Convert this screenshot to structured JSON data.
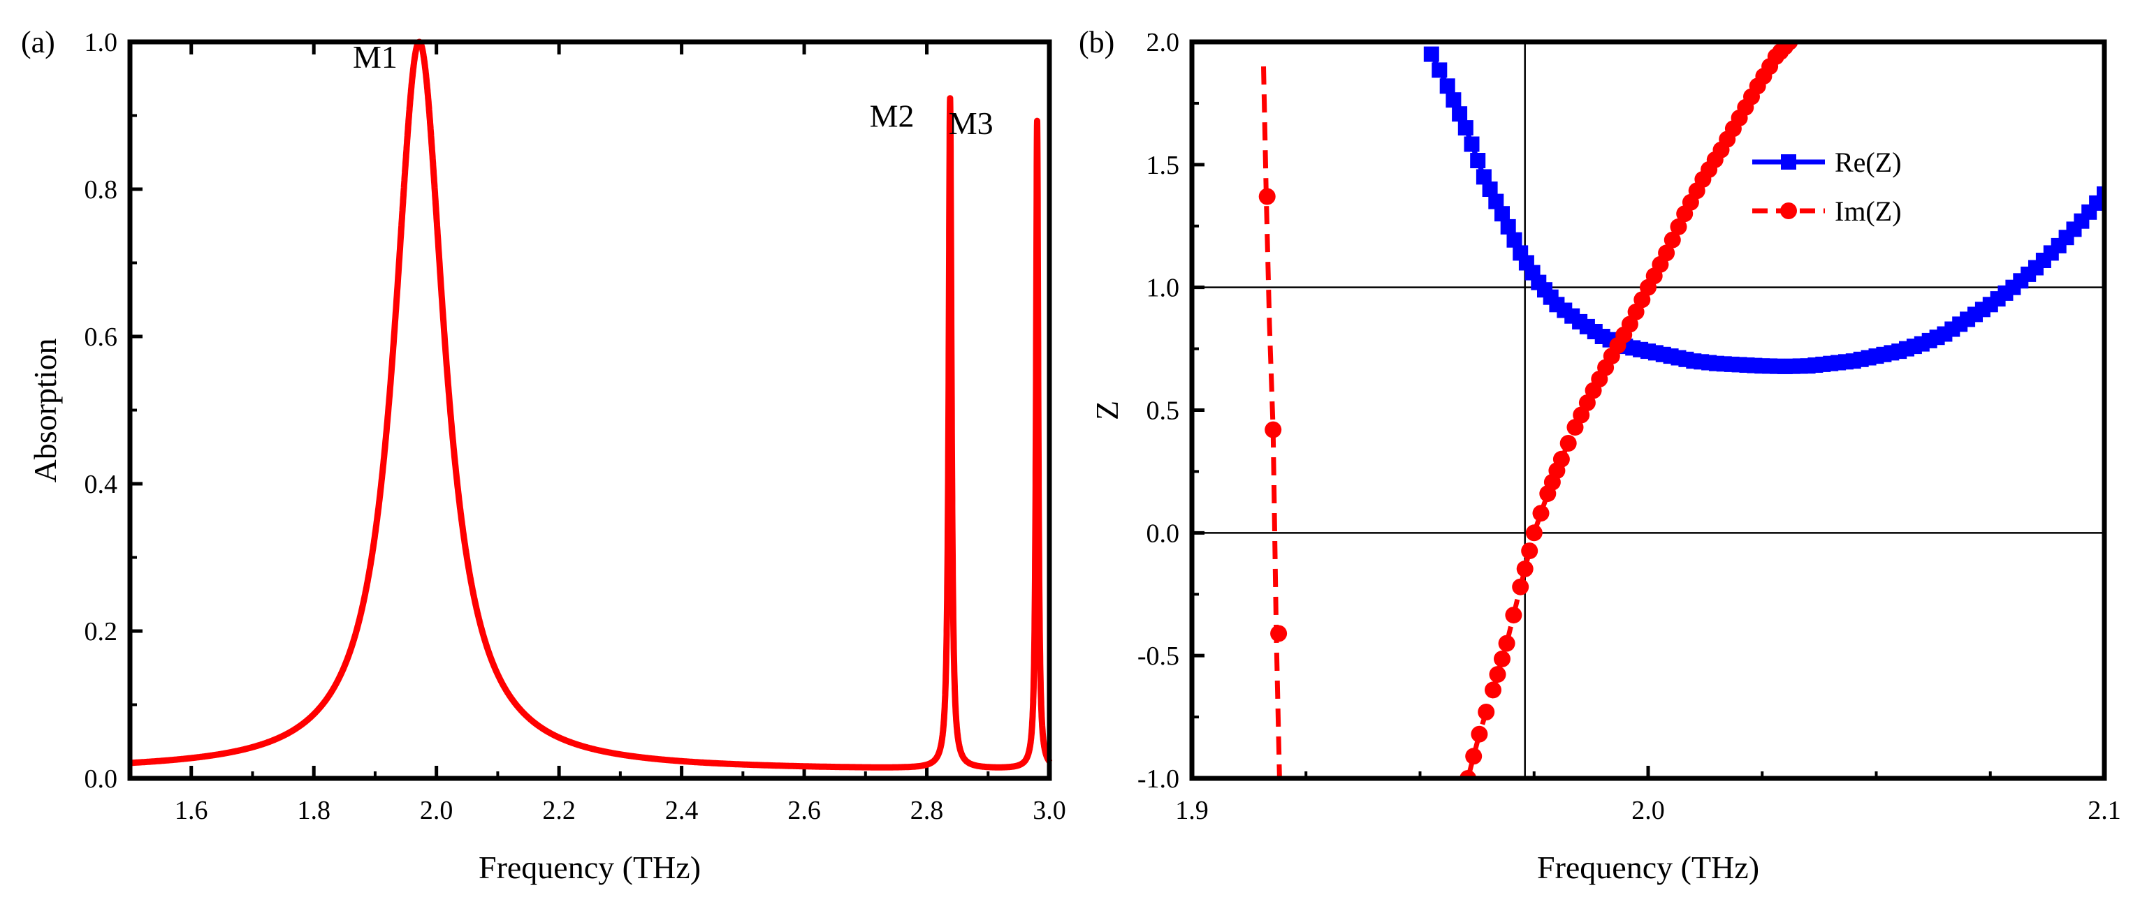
{
  "chart_data": [
    {
      "type": "line",
      "panel_label": "(a)",
      "xlabel": "Frequency (THz)",
      "ylabel": "Absorption",
      "xlim": [
        1.5,
        3.0
      ],
      "ylim": [
        0.0,
        1.0
      ],
      "x_ticks": [
        1.6,
        1.8,
        2.0,
        2.2,
        2.4,
        2.6,
        2.8,
        3.0
      ],
      "x_tick_labels": [
        "1.6",
        "1.8",
        "2.0",
        "2.2",
        "2.4",
        "2.6",
        "2.8",
        "3.0"
      ],
      "y_ticks": [
        0.0,
        0.2,
        0.4,
        0.6,
        0.8,
        1.0
      ],
      "y_tick_labels": [
        "0.0",
        "0.2",
        "0.4",
        "0.6",
        "0.8",
        "1.0"
      ],
      "series": [
        {
          "name": "Absorption",
          "color": "#ff0000",
          "baseline": 0.01,
          "peaks": [
            {
              "label": "M1",
              "center": 1.972,
              "amplitude": 0.99,
              "half_width": 0.05
            },
            {
              "label": "M2",
              "center": 2.838,
              "amplitude": 0.91,
              "half_width": 0.0028
            },
            {
              "label": "M3",
              "center": 2.98,
              "amplitude": 0.88,
              "half_width": 0.0022
            }
          ]
        }
      ],
      "annotations": [
        {
          "text": "M1",
          "x": 1.9,
          "y": 0.965
        },
        {
          "text": "M2",
          "x": 2.743,
          "y": 0.885
        },
        {
          "text": "M3",
          "x": 2.872,
          "y": 0.875
        }
      ]
    },
    {
      "type": "line",
      "panel_label": "(b)",
      "xlabel": "Frequency (THz)",
      "ylabel": "Z",
      "xlim": [
        1.9,
        2.1
      ],
      "ylim": [
        -1.0,
        2.0
      ],
      "x_ticks": [
        1.9,
        2.0,
        2.1
      ],
      "x_tick_labels": [
        "1.9",
        "2.0",
        "2.1"
      ],
      "y_ticks": [
        -1.0,
        -0.5,
        0.0,
        0.5,
        1.0,
        1.5,
        2.0
      ],
      "y_tick_labels": [
        "-1.0",
        "-0.5",
        "0.0",
        "0.5",
        "1.0",
        "1.5",
        "2.0"
      ],
      "reference_lines": {
        "horizontal": [
          0.0,
          1.0
        ],
        "vertical": [
          1.973
        ]
      },
      "legend": {
        "position": "top-right",
        "entries": [
          "Re(Z)",
          "Im(Z)"
        ]
      },
      "series": [
        {
          "name": "Re(Z)",
          "color": "#0000ff",
          "style": "solid",
          "marker": "square",
          "x": [
            1.9525,
            1.956,
            1.96,
            1.964,
            1.968,
            1.972,
            1.976,
            1.98,
            1.985,
            1.99,
            1.995,
            2.0,
            2.005,
            2.01,
            2.015,
            2.02,
            2.025,
            2.03,
            2.035,
            2.04,
            2.045,
            2.05,
            2.055,
            2.06,
            2.065,
            2.07,
            2.075,
            2.08,
            2.085,
            2.09,
            2.095,
            2.1
          ],
          "values": [
            1.95,
            1.82,
            1.65,
            1.45,
            1.3,
            1.14,
            1.02,
            0.93,
            0.86,
            0.8,
            0.76,
            0.74,
            0.72,
            0.7,
            0.69,
            0.685,
            0.68,
            0.678,
            0.68,
            0.69,
            0.7,
            0.72,
            0.74,
            0.77,
            0.81,
            0.87,
            0.93,
            1.0,
            1.08,
            1.17,
            1.27,
            1.38
          ]
        },
        {
          "name": "Im(Z)",
          "color": "#ff0000",
          "style": "dashed",
          "marker": "circle",
          "branches": [
            {
              "x": [
                1.9157,
                1.9163,
                1.917,
                1.9178,
                1.9185,
                1.9192
              ],
              "values": [
                1.9,
                1.37,
                0.85,
                0.42,
                -0.42,
                -1.0
              ]
            },
            {
              "x": [
                1.9605,
                1.963,
                1.966,
                1.969,
                1.972,
                1.975,
                1.978,
                1.981,
                1.984,
                1.988,
                1.992,
                1.996,
                2.0,
                2.004,
                2.008,
                2.012,
                2.016,
                2.02,
                2.024,
                2.028,
                2.031
              ],
              "values": [
                -1.0,
                -0.82,
                -0.64,
                -0.45,
                -0.22,
                0.0,
                0.16,
                0.3,
                0.43,
                0.58,
                0.72,
                0.85,
                1.0,
                1.14,
                1.3,
                1.44,
                1.56,
                1.69,
                1.82,
                1.94,
                2.0
              ]
            }
          ],
          "marker_points": [
            {
              "x": 1.9165,
              "y": 1.37
            },
            {
              "x": 1.9178,
              "y": 0.42
            },
            {
              "x": 1.919,
              "y": -0.41
            }
          ]
        }
      ]
    }
  ]
}
